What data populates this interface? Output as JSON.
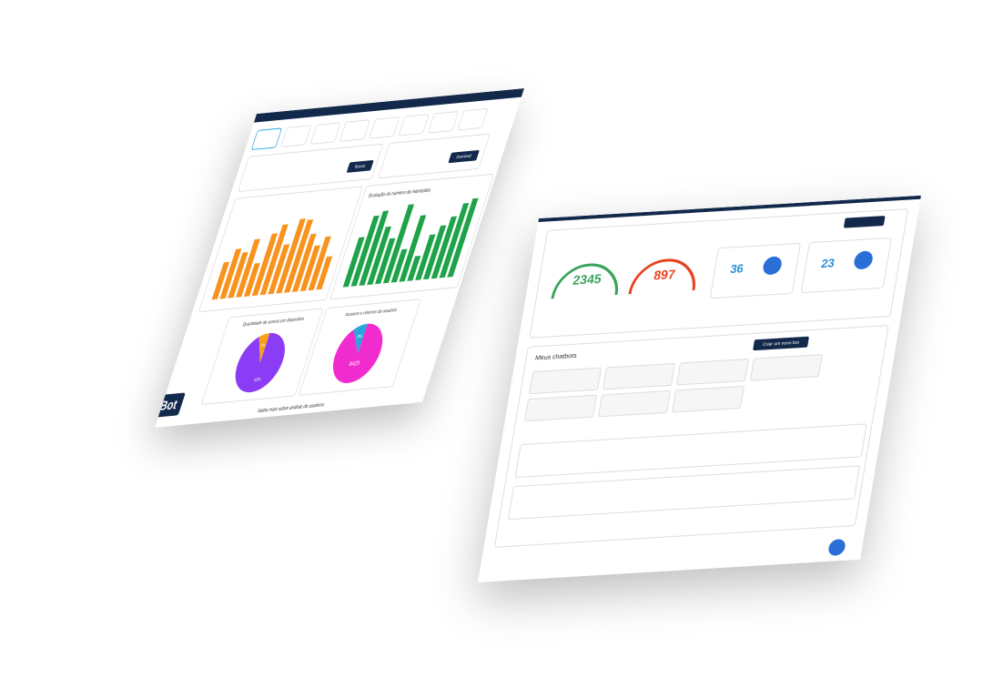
{
  "dashboard": {
    "logo": "Bot",
    "footer_link": "Saiba mais sobre análise de usuários",
    "download_button": "Download",
    "search_button": "Buscar",
    "charts": [
      {
        "type": "bar",
        "color": "#f7931e",
        "ylim": [
          0,
          100
        ],
        "values": [
          45,
          60,
          55,
          70,
          40,
          75,
          85,
          60,
          90,
          88,
          70,
          55,
          65,
          40
        ]
      },
      {
        "type": "bar",
        "title": "Evolução do número de interações",
        "color": "#1fa34a",
        "ylim": [
          0,
          100
        ],
        "values": [
          60,
          85,
          90,
          70,
          55,
          95,
          40,
          80,
          30,
          55,
          65,
          75,
          90,
          95
        ]
      },
      {
        "type": "pie",
        "title": "Quantidade de acesso por dispositivo",
        "values": [
          93,
          7
        ],
        "value_labels": [
          "93%",
          "7%"
        ],
        "colors": [
          "#8b3df5",
          "#f7a11a"
        ]
      },
      {
        "type": "pie",
        "title": "Acessos e retornos de usuários",
        "values": [
          91,
          9
        ],
        "value_labels": [
          null,
          "9%"
        ],
        "center_label": "8425",
        "colors": [
          "#f02ccf",
          "#28a6dc"
        ]
      }
    ]
  },
  "chatbots_panel": {
    "gauges": [
      {
        "value": "2345",
        "color": "#3aa35b"
      },
      {
        "value": "897",
        "color": "#e8421f"
      }
    ],
    "cards": [
      {
        "value": "36"
      },
      {
        "value": "23"
      }
    ],
    "section_title": "Meus chatbots",
    "create_button": "Criar um novo bot"
  }
}
